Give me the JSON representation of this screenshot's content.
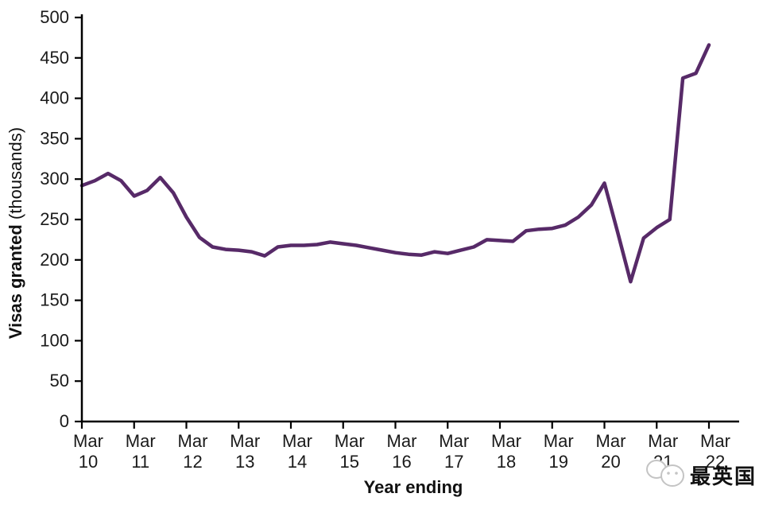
{
  "chart_data": {
    "type": "line",
    "title": "",
    "xlabel": "Year ending",
    "ylabel": "Visas granted",
    "ylabel_suffix": " (thousands)",
    "ylim": [
      0,
      500
    ],
    "y_ticks": [
      0,
      50,
      100,
      150,
      200,
      250,
      300,
      350,
      400,
      450,
      500
    ],
    "x_tick_labels": [
      [
        "Mar",
        "10"
      ],
      [
        "Mar",
        "11"
      ],
      [
        "Mar",
        "12"
      ],
      [
        "Mar",
        "13"
      ],
      [
        "Mar",
        "14"
      ],
      [
        "Mar",
        "15"
      ],
      [
        "Mar",
        "16"
      ],
      [
        "Mar",
        "17"
      ],
      [
        "Mar",
        "18"
      ],
      [
        "Mar",
        "19"
      ],
      [
        "Mar",
        "20"
      ],
      [
        "Mar",
        "21"
      ],
      [
        "Mar",
        "22"
      ]
    ],
    "grid": "off",
    "legend": "none",
    "line_color": "#572a68",
    "categories": [
      "Mar 10",
      "Jun 10",
      "Sep 10",
      "Dec 10",
      "Mar 11",
      "Jun 11",
      "Sep 11",
      "Dec 11",
      "Mar 12",
      "Jun 12",
      "Sep 12",
      "Dec 12",
      "Mar 13",
      "Jun 13",
      "Sep 13",
      "Dec 13",
      "Mar 14",
      "Jun 14",
      "Sep 14",
      "Dec 14",
      "Mar 15",
      "Jun 15",
      "Sep 15",
      "Dec 15",
      "Mar 16",
      "Jun 16",
      "Sep 16",
      "Dec 16",
      "Mar 17",
      "Jun 17",
      "Sep 17",
      "Dec 17",
      "Mar 18",
      "Jun 18",
      "Sep 18",
      "Dec 18",
      "Mar 19",
      "Jun 19",
      "Sep 19",
      "Dec 19",
      "Mar 20",
      "Jun 20",
      "Sep 20",
      "Dec 20",
      "Mar 21",
      "Jun 21",
      "Sep 21",
      "Dec 21",
      "Mar 22"
    ],
    "series": [
      {
        "name": "Visas granted",
        "values": [
          292,
          298,
          307,
          298,
          279,
          286,
          302,
          283,
          253,
          228,
          216,
          213,
          212,
          210,
          205,
          216,
          218,
          218,
          219,
          222,
          220,
          218,
          215,
          212,
          209,
          207,
          206,
          210,
          208,
          212,
          216,
          225,
          224,
          223,
          236,
          238,
          239,
          243,
          253,
          268,
          295,
          235,
          173,
          227,
          240,
          250,
          425,
          431,
          466
        ]
      }
    ]
  },
  "watermark": {
    "text": "最英国",
    "logo": "chat-bubble-mascot",
    "color": "#b3b3b3"
  }
}
